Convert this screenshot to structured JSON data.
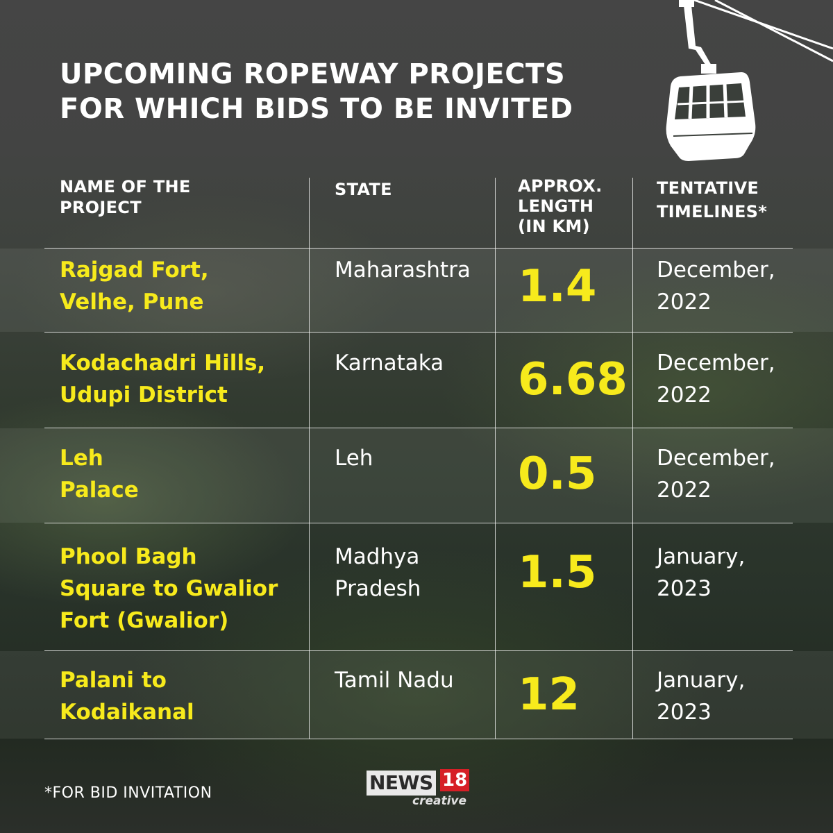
{
  "title": {
    "line1": "UPCOMING ROPEWAY PROJECTS",
    "line2": "FOR WHICH BIDS TO BE INVITED"
  },
  "headers": {
    "name": [
      "NAME OF THE",
      "PROJECT"
    ],
    "state": [
      "STATE"
    ],
    "length": [
      "APPROX.",
      "LENGTH",
      "(IN KM)"
    ],
    "timeline": [
      "TENTATIVE",
      "TIMELINES*"
    ]
  },
  "rows": [
    {
      "name": [
        "Rajgad Fort,",
        "Velhe, Pune"
      ],
      "state": [
        "Maharashtra"
      ],
      "length": "1.4",
      "timeline": [
        "December,",
        "2022"
      ]
    },
    {
      "name": [
        "Kodachadri Hills,",
        "Udupi District"
      ],
      "state": [
        "Karnataka"
      ],
      "length": "6.68",
      "timeline": [
        "December,",
        "2022"
      ]
    },
    {
      "name": [
        "Leh",
        "Palace"
      ],
      "state": [
        "Leh"
      ],
      "length": "0.5",
      "timeline": [
        "December,",
        "2022"
      ]
    },
    {
      "name": [
        "Phool Bagh",
        "Square to Gwalior",
        "Fort (Gwalior)"
      ],
      "state": [
        "Madhya",
        "Pradesh"
      ],
      "length": "1.5",
      "timeline": [
        "January,",
        "2023"
      ]
    },
    {
      "name": [
        "Palani to",
        "Kodaikanal"
      ],
      "state": [
        "Tamil Nadu"
      ],
      "length": "12",
      "timeline": [
        "January,",
        "2023"
      ]
    }
  ],
  "footnote": "*FOR BID INVITATION",
  "logo": {
    "brand": "NEWS",
    "number": "18",
    "sub": "creative"
  },
  "colors": {
    "accent": "#f7ea1c",
    "text": "#ffffff",
    "logo_red": "#d61f26"
  },
  "icons": {
    "cable_car": "cable-car-icon"
  }
}
